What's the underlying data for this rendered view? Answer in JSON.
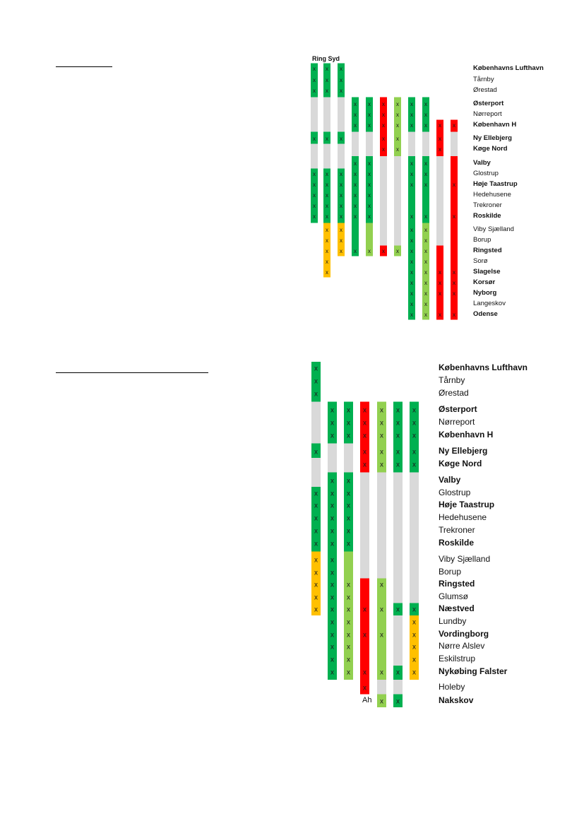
{
  "colors": {
    "gray": "#d9d9d9",
    "dark_green": "#00b050",
    "light_green": "#92d050",
    "red": "#ff0000",
    "orange": "#ffc000",
    "mark": "#1a1a1a"
  },
  "mark_symbol": "x",
  "diagram1": {
    "header": "Ring Syd",
    "stations": [
      {
        "name": "Københavns Lufthavn",
        "bold": true
      },
      {
        "name": "Tårnby",
        "bold": false
      },
      {
        "name": "Ørestad",
        "bold": false
      },
      {
        "name": "Østerport",
        "bold": true
      },
      {
        "name": "Nørreport",
        "bold": false
      },
      {
        "name": "København H",
        "bold": true
      },
      {
        "name": "Ny Ellebjerg",
        "bold": true
      },
      {
        "name": "Køge Nord",
        "bold": true
      },
      {
        "name": "Valby",
        "bold": true
      },
      {
        "name": "Glostrup",
        "bold": false
      },
      {
        "name": "Høje Taastrup",
        "bold": true
      },
      {
        "name": "Hedehusene",
        "bold": false
      },
      {
        "name": "Trekroner",
        "bold": false
      },
      {
        "name": "Roskilde",
        "bold": true
      },
      {
        "name": "Viby Sjælland",
        "bold": false
      },
      {
        "name": "Borup",
        "bold": false
      },
      {
        "name": "Ringsted",
        "bold": true
      },
      {
        "name": "Sorø",
        "bold": false
      },
      {
        "name": "Slagelse",
        "bold": true
      },
      {
        "name": "Korsør",
        "bold": true
      },
      {
        "name": "Nyborg",
        "bold": true
      },
      {
        "name": "Langeskov",
        "bold": false
      },
      {
        "name": "Odense",
        "bold": true
      }
    ],
    "columns": [
      {
        "segments": [
          {
            "from": 0,
            "to": 2,
            "color": "dark_green",
            "marks": [
              0,
              1,
              2
            ]
          },
          {
            "from": 3,
            "to": 5,
            "color": "gray",
            "marks": []
          },
          {
            "from": 6,
            "to": 6,
            "color": "dark_green",
            "marks": [
              6
            ]
          },
          {
            "from": 7,
            "to": 8,
            "color": "gray",
            "marks": []
          },
          {
            "from": 9,
            "to": 13,
            "color": "dark_green",
            "marks": [
              9,
              10,
              11,
              12,
              13
            ]
          }
        ]
      },
      {
        "segments": [
          {
            "from": 0,
            "to": 2,
            "color": "dark_green",
            "marks": [
              0,
              1,
              2
            ]
          },
          {
            "from": 3,
            "to": 5,
            "color": "gray",
            "marks": []
          },
          {
            "from": 6,
            "to": 6,
            "color": "dark_green",
            "marks": [
              6
            ]
          },
          {
            "from": 7,
            "to": 8,
            "color": "gray",
            "marks": []
          },
          {
            "from": 9,
            "to": 13,
            "color": "dark_green",
            "marks": [
              9,
              10,
              11,
              12,
              13
            ]
          },
          {
            "from": 14,
            "to": 18,
            "color": "orange",
            "marks": [
              14,
              15,
              16,
              17,
              18
            ]
          }
        ]
      },
      {
        "segments": [
          {
            "from": 0,
            "to": 2,
            "color": "dark_green",
            "marks": [
              0,
              1,
              2
            ]
          },
          {
            "from": 3,
            "to": 5,
            "color": "gray",
            "marks": []
          },
          {
            "from": 6,
            "to": 6,
            "color": "dark_green",
            "marks": [
              6
            ]
          },
          {
            "from": 7,
            "to": 8,
            "color": "gray",
            "marks": []
          },
          {
            "from": 9,
            "to": 13,
            "color": "dark_green",
            "marks": [
              9,
              10,
              11,
              12,
              13
            ]
          },
          {
            "from": 14,
            "to": 16,
            "color": "orange",
            "marks": [
              14,
              15,
              16
            ]
          }
        ]
      },
      {
        "segments": [
          {
            "from": 3,
            "to": 5,
            "color": "dark_green",
            "marks": [
              3,
              4,
              5
            ]
          },
          {
            "from": 6,
            "to": 7,
            "color": "gray",
            "marks": []
          },
          {
            "from": 8,
            "to": 13,
            "color": "dark_green",
            "marks": [
              8,
              9,
              10,
              11,
              12,
              13
            ]
          },
          {
            "from": 14,
            "to": 16,
            "color": "dark_green",
            "marks": [
              16
            ]
          }
        ]
      },
      {
        "segments": [
          {
            "from": 3,
            "to": 5,
            "color": "dark_green",
            "marks": [
              3,
              4,
              5
            ]
          },
          {
            "from": 6,
            "to": 7,
            "color": "gray",
            "marks": []
          },
          {
            "from": 8,
            "to": 13,
            "color": "dark_green",
            "marks": [
              8,
              9,
              10,
              11,
              12,
              13
            ]
          },
          {
            "from": 14,
            "to": 16,
            "color": "light_green",
            "marks": [
              16
            ]
          }
        ]
      },
      {
        "segments": [
          {
            "from": 3,
            "to": 5,
            "color": "red",
            "marks": [
              3,
              4,
              5
            ]
          },
          {
            "from": 6,
            "to": 7,
            "color": "red",
            "marks": [
              6,
              7
            ]
          },
          {
            "from": 8,
            "to": 15,
            "color": "gray",
            "marks": []
          },
          {
            "from": 16,
            "to": 16,
            "color": "red",
            "marks": [
              16
            ]
          }
        ]
      },
      {
        "segments": [
          {
            "from": 3,
            "to": 5,
            "color": "light_green",
            "marks": [
              3,
              4,
              5
            ]
          },
          {
            "from": 6,
            "to": 7,
            "color": "light_green",
            "marks": [
              6,
              7
            ]
          },
          {
            "from": 8,
            "to": 15,
            "color": "gray",
            "marks": []
          },
          {
            "from": 16,
            "to": 16,
            "color": "light_green",
            "marks": [
              16
            ]
          }
        ]
      },
      {
        "segments": [
          {
            "from": 3,
            "to": 5,
            "color": "dark_green",
            "marks": [
              3,
              4,
              5
            ]
          },
          {
            "from": 6,
            "to": 7,
            "color": "gray",
            "marks": []
          },
          {
            "from": 8,
            "to": 22,
            "color": "dark_green",
            "marks": [
              8,
              9,
              10,
              13,
              14,
              15,
              16,
              17,
              18,
              19,
              20,
              21,
              22
            ]
          }
        ]
      },
      {
        "segments": [
          {
            "from": 3,
            "to": 5,
            "color": "dark_green",
            "marks": [
              3,
              4,
              5
            ]
          },
          {
            "from": 6,
            "to": 7,
            "color": "gray",
            "marks": []
          },
          {
            "from": 8,
            "to": 13,
            "color": "dark_green",
            "marks": [
              8,
              9,
              10,
              13
            ]
          },
          {
            "from": 14,
            "to": 22,
            "color": "light_green",
            "marks": [
              14,
              15,
              16,
              17,
              18,
              19,
              20,
              21,
              22
            ]
          }
        ]
      },
      {
        "segments": [
          {
            "from": 5,
            "to": 7,
            "color": "red",
            "marks": [
              5,
              6,
              7
            ]
          },
          {
            "from": 8,
            "to": 15,
            "color": "gray",
            "marks": []
          },
          {
            "from": 16,
            "to": 22,
            "color": "red",
            "marks": [
              18,
              19,
              20,
              22
            ]
          }
        ]
      },
      {
        "segments": [
          {
            "from": 5,
            "to": 5,
            "color": "red",
            "marks": [
              5
            ]
          },
          {
            "from": 6,
            "to": 7,
            "color": "gray",
            "marks": []
          },
          {
            "from": 8,
            "to": 22,
            "color": "red",
            "marks": [
              10,
              13,
              18,
              19,
              20,
              22
            ]
          }
        ]
      }
    ]
  },
  "diagram2": {
    "bottom_label": "Ah",
    "stations": [
      {
        "name": "Københavns Lufthavn",
        "bold": true
      },
      {
        "name": "Tårnby",
        "bold": false
      },
      {
        "name": "Ørestad",
        "bold": false
      },
      {
        "name": "Østerport",
        "bold": true
      },
      {
        "name": "Nørreport",
        "bold": false
      },
      {
        "name": "København H",
        "bold": true
      },
      {
        "name": "Ny Ellebjerg",
        "bold": true
      },
      {
        "name": "Køge Nord",
        "bold": true
      },
      {
        "name": "Valby",
        "bold": true
      },
      {
        "name": "Glostrup",
        "bold": false
      },
      {
        "name": "Høje Taastrup",
        "bold": true
      },
      {
        "name": "Hedehusene",
        "bold": false
      },
      {
        "name": "Trekroner",
        "bold": false
      },
      {
        "name": "Roskilde",
        "bold": true
      },
      {
        "name": "Viby Sjælland",
        "bold": false
      },
      {
        "name": "Borup",
        "bold": false
      },
      {
        "name": "Ringsted",
        "bold": true
      },
      {
        "name": "Glumsø",
        "bold": false
      },
      {
        "name": "Næstved",
        "bold": true
      },
      {
        "name": "Lundby",
        "bold": false
      },
      {
        "name": "Vordingborg",
        "bold": true
      },
      {
        "name": "Nørre Alslev",
        "bold": false
      },
      {
        "name": "Eskilstrup",
        "bold": false
      },
      {
        "name": "Nykøbing Falster",
        "bold": true
      },
      {
        "name": "Holeby",
        "bold": false
      },
      {
        "name": "Nakskov",
        "bold": true
      }
    ],
    "columns": [
      {
        "segments": [
          {
            "from": 0,
            "to": 2,
            "color": "dark_green",
            "marks": [
              0,
              1,
              2
            ]
          },
          {
            "from": 3,
            "to": 5,
            "color": "gray",
            "marks": []
          },
          {
            "from": 6,
            "to": 6,
            "color": "dark_green",
            "marks": [
              6
            ]
          },
          {
            "from": 7,
            "to": 8,
            "color": "gray",
            "marks": []
          },
          {
            "from": 9,
            "to": 13,
            "color": "dark_green",
            "marks": [
              9,
              10,
              11,
              12,
              13
            ]
          },
          {
            "from": 14,
            "to": 18,
            "color": "orange",
            "marks": [
              14,
              15,
              16,
              17,
              18
            ]
          }
        ]
      },
      {
        "segments": [
          {
            "from": 3,
            "to": 5,
            "color": "dark_green",
            "marks": [
              3,
              4,
              5
            ]
          },
          {
            "from": 6,
            "to": 7,
            "color": "gray",
            "marks": []
          },
          {
            "from": 8,
            "to": 23,
            "color": "dark_green",
            "marks": [
              8,
              9,
              10,
              11,
              12,
              13,
              14,
              15,
              16,
              17,
              18,
              19,
              20,
              21,
              22,
              23
            ]
          }
        ]
      },
      {
        "segments": [
          {
            "from": 3,
            "to": 5,
            "color": "dark_green",
            "marks": [
              3,
              4,
              5
            ]
          },
          {
            "from": 6,
            "to": 7,
            "color": "gray",
            "marks": []
          },
          {
            "from": 8,
            "to": 13,
            "color": "dark_green",
            "marks": [
              8,
              9,
              10,
              11,
              12,
              13
            ]
          },
          {
            "from": 14,
            "to": 23,
            "color": "light_green",
            "marks": [
              16,
              17,
              18,
              19,
              20,
              21,
              22,
              23
            ]
          }
        ]
      },
      {
        "segments": [
          {
            "from": 3,
            "to": 7,
            "color": "red",
            "marks": [
              3,
              4,
              5,
              6,
              7
            ]
          },
          {
            "from": 8,
            "to": 15,
            "color": "gray",
            "marks": []
          },
          {
            "from": 16,
            "to": 24,
            "color": "red",
            "marks": [
              18,
              20,
              23,
              24
            ]
          }
        ]
      },
      {
        "segments": [
          {
            "from": 3,
            "to": 7,
            "color": "light_green",
            "marks": [
              3,
              4,
              5,
              6,
              7
            ]
          },
          {
            "from": 8,
            "to": 15,
            "color": "gray",
            "marks": []
          },
          {
            "from": 16,
            "to": 23,
            "color": "light_green",
            "marks": [
              16,
              18,
              20,
              23
            ]
          },
          {
            "from": 24,
            "to": 24,
            "color": "gray",
            "marks": []
          },
          {
            "from": 25,
            "to": 25,
            "color": "light_green",
            "marks": [
              25
            ]
          }
        ]
      },
      {
        "segments": [
          {
            "from": 3,
            "to": 7,
            "color": "dark_green",
            "marks": [
              3,
              4,
              5,
              6,
              7
            ]
          },
          {
            "from": 8,
            "to": 17,
            "color": "gray",
            "marks": []
          },
          {
            "from": 18,
            "to": 18,
            "color": "dark_green",
            "marks": [
              18
            ]
          },
          {
            "from": 19,
            "to": 22,
            "color": "gray",
            "marks": []
          },
          {
            "from": 23,
            "to": 23,
            "color": "dark_green",
            "marks": [
              23
            ]
          },
          {
            "from": 24,
            "to": 24,
            "color": "gray",
            "marks": []
          },
          {
            "from": 25,
            "to": 25,
            "color": "dark_green",
            "marks": [
              25
            ]
          }
        ]
      },
      {
        "segments": [
          {
            "from": 3,
            "to": 7,
            "color": "dark_green",
            "marks": [
              3,
              4,
              5,
              6,
              7
            ]
          },
          {
            "from": 8,
            "to": 17,
            "color": "gray",
            "marks": []
          },
          {
            "from": 18,
            "to": 18,
            "color": "dark_green",
            "marks": [
              18
            ]
          },
          {
            "from": 19,
            "to": 23,
            "color": "orange",
            "marks": [
              19,
              20,
              21,
              22,
              23
            ]
          }
        ]
      }
    ]
  }
}
